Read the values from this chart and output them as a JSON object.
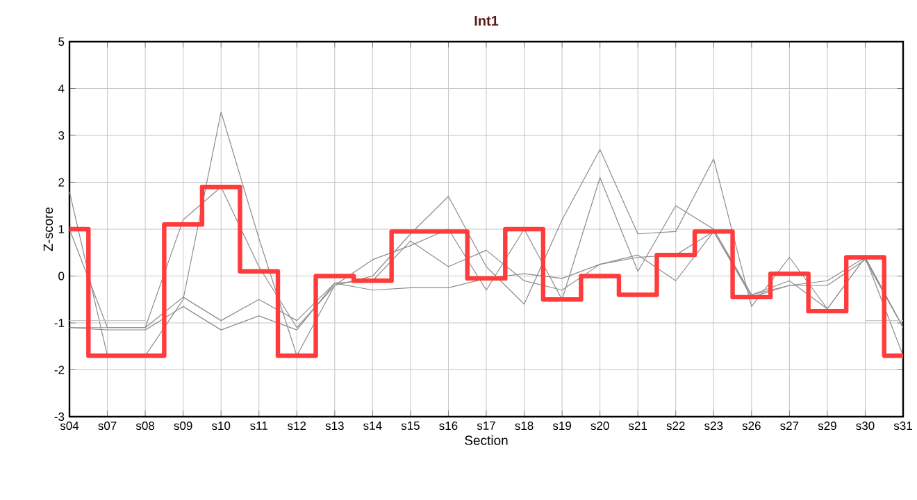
{
  "chart_data": {
    "type": "line",
    "title": "Int1",
    "xlabel": "Section",
    "ylabel": "Z-score",
    "categories": [
      "s04",
      "s07",
      "s08",
      "s09",
      "s10",
      "s11",
      "s12",
      "s13",
      "s14",
      "s15",
      "s16",
      "s17",
      "s18",
      "s19",
      "s20",
      "s21",
      "s22",
      "s23",
      "s26",
      "s27",
      "s29",
      "s30",
      "s31"
    ],
    "ylim": [
      -3,
      5
    ],
    "yticks": [
      -3,
      -2,
      -1,
      0,
      1,
      2,
      3,
      4,
      5
    ],
    "grid": true,
    "series": [
      {
        "color": "#8c8c8c",
        "values": [
          1.8,
          -1.7,
          -1.7,
          -0.5,
          3.5,
          0.8,
          -1.7,
          -0.2,
          0,
          0.9,
          1.7,
          0.2,
          -0.6,
          1.2,
          2.7,
          0.9,
          0.95,
          2.5,
          -0.65,
          0.4,
          -0.7,
          0.4,
          -1.1
        ]
      },
      {
        "color": "#8c8c8c",
        "values": [
          1.0,
          -1.1,
          -1.1,
          1.2,
          1.9,
          0.2,
          -1.1,
          -0.2,
          0.35,
          0.65,
          1.0,
          -0.3,
          1.0,
          -0.5,
          2.1,
          0.1,
          1.5,
          1.0,
          -0.4,
          -0.1,
          -0.7,
          0.4,
          -1.1
        ]
      },
      {
        "color": "#8c8c8c",
        "values": [
          -1.1,
          -1.1,
          -1.1,
          -0.45,
          -0.95,
          -0.5,
          -0.95,
          -0.15,
          -0.1,
          0.75,
          0.2,
          0.55,
          -0.1,
          -0.3,
          0.25,
          0.45,
          -0.1,
          0.95,
          -0.45,
          -0.2,
          -0.1,
          0.4,
          -1.7
        ]
      },
      {
        "color": "#8c8c8c",
        "values": [
          -1.1,
          -1.15,
          -1.15,
          -0.65,
          -1.15,
          -0.85,
          -1.15,
          -0.15,
          -0.3,
          -0.25,
          -0.25,
          -0.05,
          0.05,
          -0.05,
          0.25,
          0.4,
          0.45,
          0.95,
          -0.4,
          -0.2,
          -0.2,
          0.35,
          -1.1
        ]
      },
      {
        "color": "#c8c8c8",
        "values": [
          -0.95,
          -0.95,
          -0.95,
          null,
          null,
          null,
          null,
          null,
          null,
          null,
          null,
          null,
          null,
          null,
          null,
          null,
          null,
          null,
          null,
          null,
          null,
          -0.95,
          -0.95
        ]
      },
      {
        "type": "step",
        "color": "#ff3b3b",
        "values": [
          1.0,
          -1.7,
          -1.7,
          1.1,
          1.9,
          0.1,
          -1.7,
          0,
          -0.1,
          0.95,
          0.95,
          -0.05,
          1.0,
          -0.5,
          0,
          -0.4,
          0.45,
          0.95,
          -0.45,
          0.05,
          -0.75,
          0.4,
          -1.7
        ]
      }
    ]
  }
}
